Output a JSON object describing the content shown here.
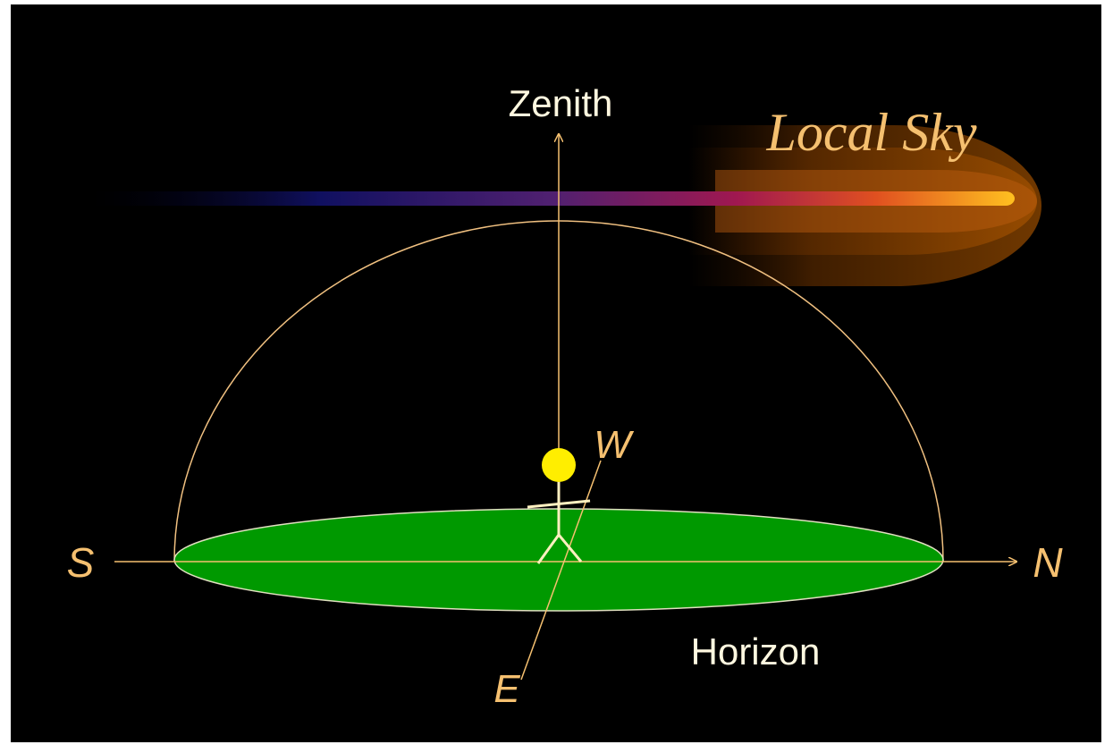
{
  "title": "Local Sky",
  "labels": {
    "zenith": "Zenith",
    "horizon": "Horizon",
    "south": "S",
    "north": "N",
    "west": "W",
    "east": "E"
  }
}
